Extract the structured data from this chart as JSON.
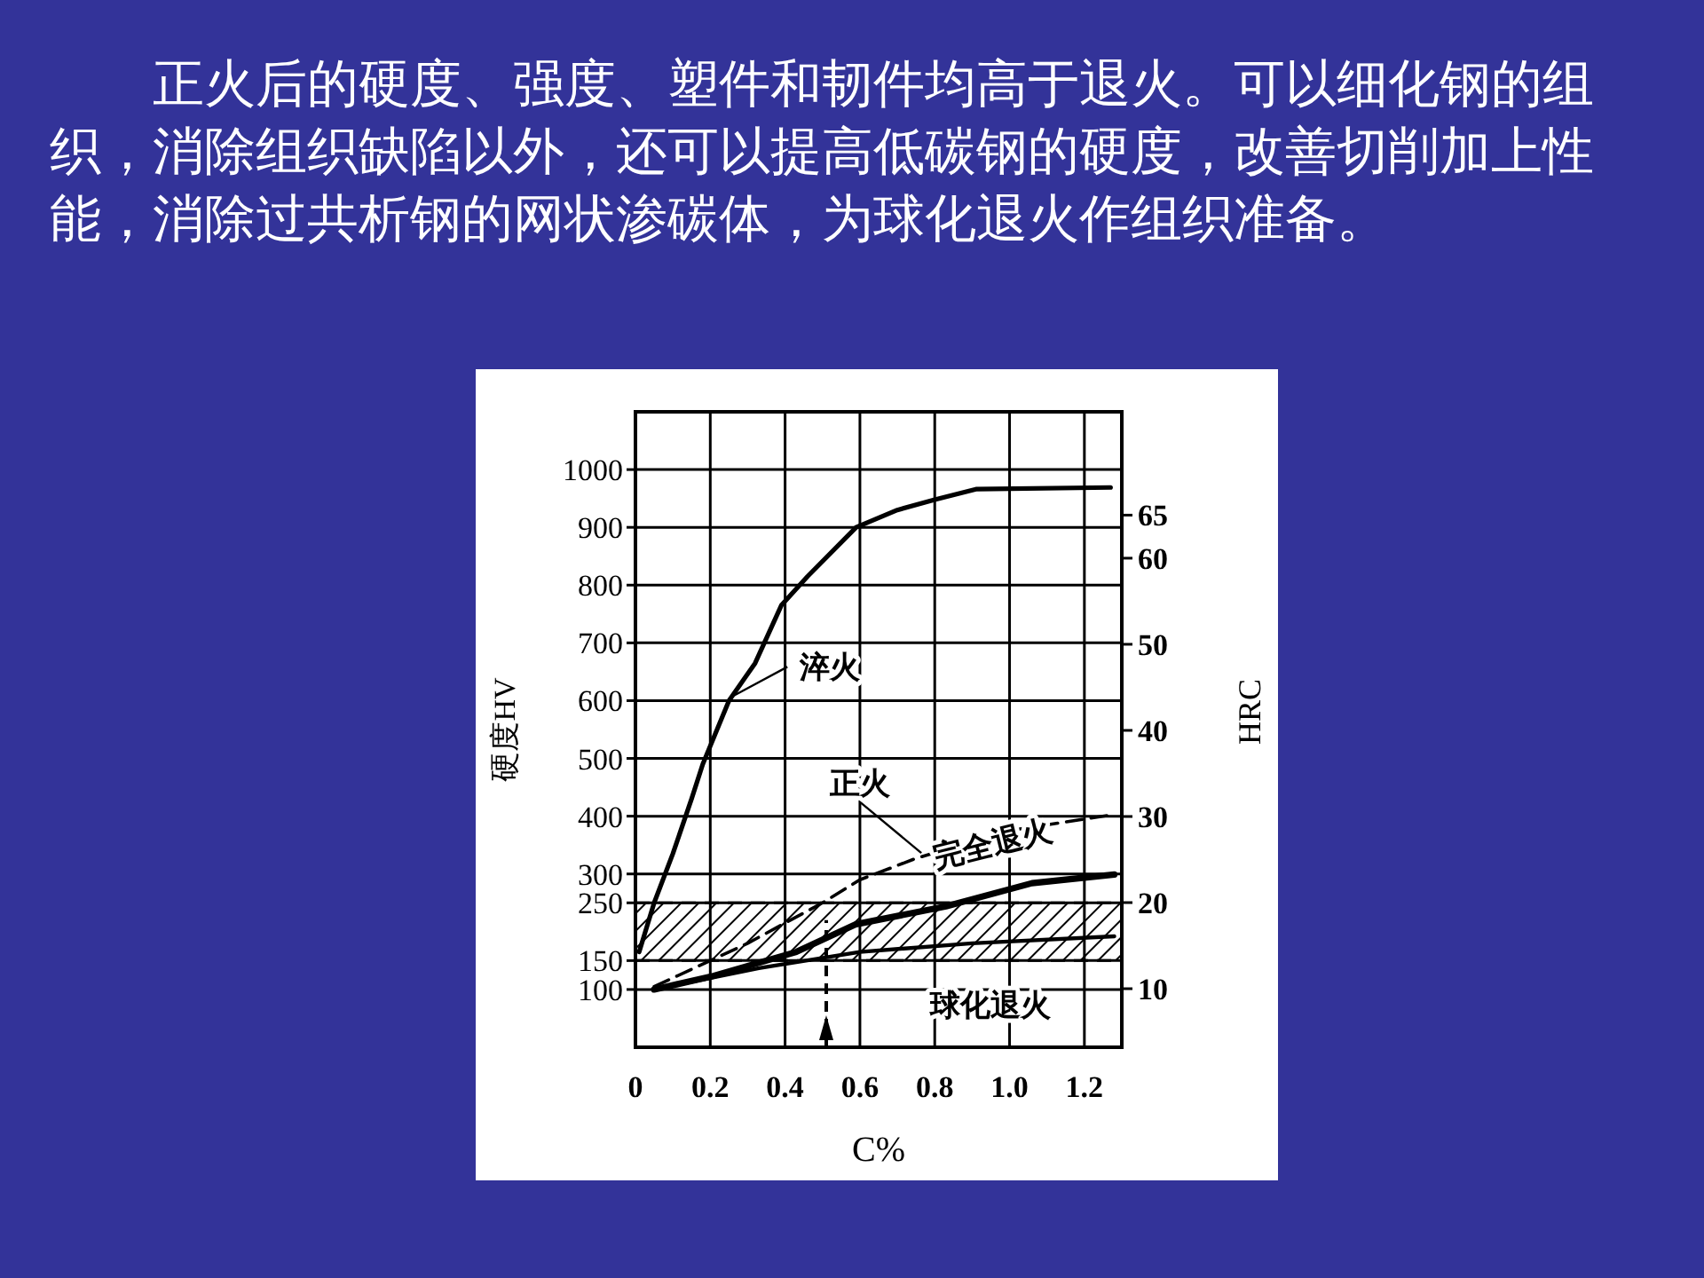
{
  "chart_data": {
    "type": "line",
    "title": "正火后的硬度、强度、塑件和韧件均高于退火。可以细化钢的组织，消除组织缺陷以外，还可以提高低碳钢的硬度，改善切削加上性能，消除过共析钢的网状渗碳体，为球化退火作组织准备。",
    "xlabel": "C%",
    "ylabel": "硬度HV",
    "y2label": "HRC",
    "xlim": [
      0,
      1.3
    ],
    "ylim": [
      0,
      1100
    ],
    "y2lim": [
      3.2,
      77
    ],
    "xticks": [
      0,
      0.2,
      0.4,
      0.6,
      0.8,
      {
        "value": 1,
        "label": "1.0"
      },
      1.2
    ],
    "yticks": [
      100,
      150,
      250,
      300,
      400,
      500,
      600,
      700,
      800,
      900,
      1000
    ],
    "y2ticks": [
      10,
      20,
      30,
      40,
      50,
      60,
      65
    ],
    "grid": true,
    "series": [
      {
        "name": "淬火",
        "color": "#000000",
        "line_style": "solid",
        "x": [
          0.01,
          0.05,
          0.1,
          0.15,
          0.18,
          0.25,
          0.32,
          0.39,
          0.46,
          0.59,
          0.7,
          0.8,
          0.91,
          1.27
        ],
        "values": [
          165,
          250,
          335,
          430,
          490,
          600,
          665,
          765,
          815,
          900,
          930,
          948,
          966,
          969
        ]
      },
      {
        "name": "正火",
        "color": "#000000",
        "line_style": "dashed",
        "x": [
          0.05,
          0.3,
          0.5,
          0.6,
          0.75,
          1.0,
          1.28
        ],
        "values": [
          105,
          180,
          250,
          290,
          327,
          375,
          403
        ]
      },
      {
        "name": "完全退火",
        "color": "#000000",
        "line_style": "solid",
        "x": [
          0.05,
          0.2,
          0.43,
          0.59,
          0.83,
          1.06,
          1.28
        ],
        "values": [
          100,
          122,
          165,
          213,
          244,
          284,
          299
        ]
      },
      {
        "name": "球化退火",
        "color": "#000000",
        "line_style": "solid",
        "x": [
          0.05,
          0.33,
          0.6,
          0.9,
          1.28
        ],
        "values": [
          100,
          137,
          165,
          180,
          192
        ]
      }
    ],
    "bands": [
      {
        "axis": "y",
        "from": 150,
        "to": 250,
        "color": "#000000"
      }
    ],
    "ref_lines": [
      {
        "axis": "x",
        "value": 0.51,
        "line_style": "dashed"
      }
    ]
  }
}
